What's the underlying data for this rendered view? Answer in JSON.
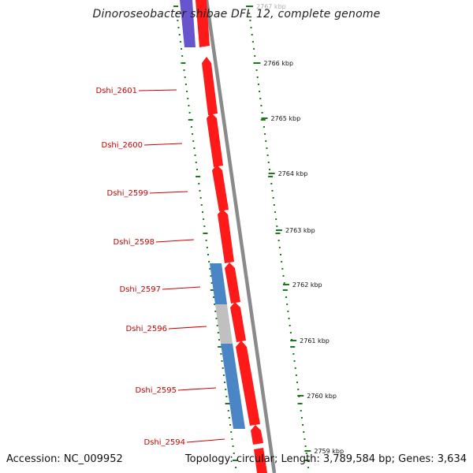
{
  "title": "Dinoroseobacter shibae DFL 12, complete genome",
  "accession": "Accession: NC_009952",
  "topology": "Topology: circular; Length: 3,789,584 bp; Genes: 3,634",
  "colors": {
    "forward_gene": "#ff1a1a",
    "reverse_gene_blue": "#4a86c5",
    "reverse_gene_gray": "#c0c0c0",
    "reverse_gene_purple": "#6655cc",
    "backbone": "#888888",
    "ticks": "#1a7a1a",
    "labels": "#cc0000"
  },
  "ruler": [
    {
      "label": "2767 kbp"
    },
    {
      "label": "2766 kbp"
    },
    {
      "label": "2765 kbp"
    },
    {
      "label": "2764 kbp"
    },
    {
      "label": "2763 kbp"
    },
    {
      "label": "2762 kbp"
    },
    {
      "label": "2761 kbp"
    },
    {
      "label": "2760 kbp"
    },
    {
      "label": "2759 kbp"
    }
  ],
  "genes": [
    {
      "label": "Dshi_2601"
    },
    {
      "label": "Dshi_2600"
    },
    {
      "label": "Dshi_2599"
    },
    {
      "label": "Dshi_2598"
    },
    {
      "label": "Dshi_2597"
    },
    {
      "label": "Dshi_2596"
    },
    {
      "label": "Dshi_2595"
    },
    {
      "label": "Dshi_2594"
    }
  ]
}
